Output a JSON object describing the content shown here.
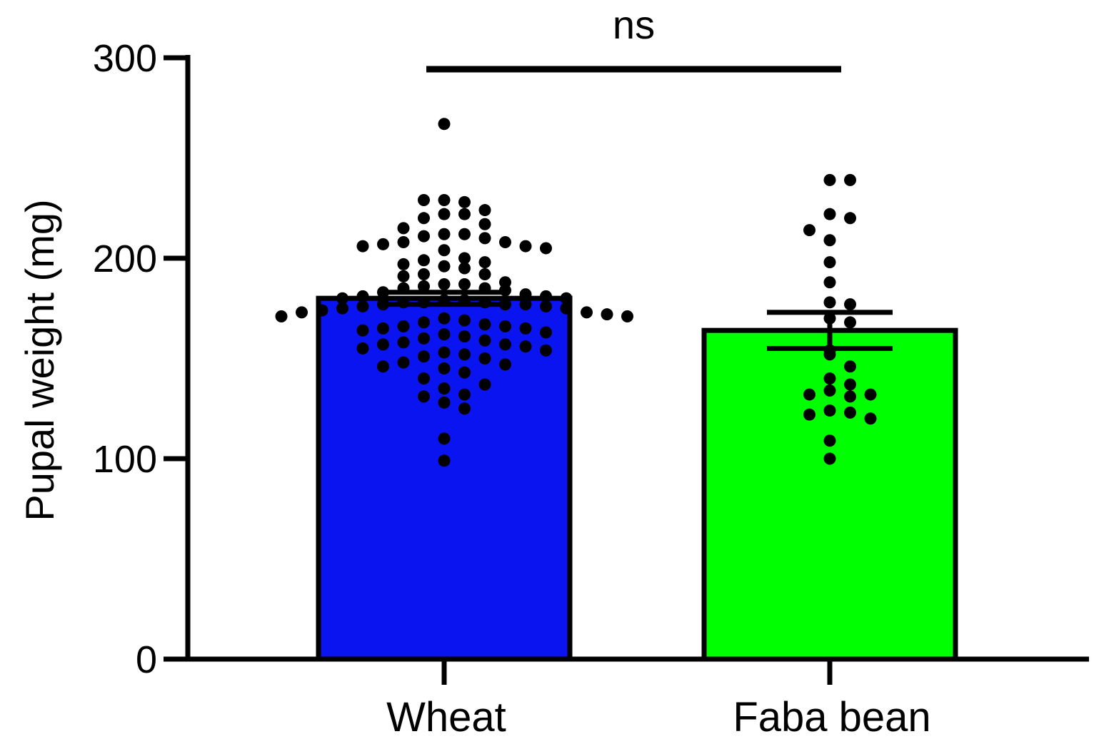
{
  "chart_data": {
    "type": "bar",
    "title": "",
    "xlabel": "",
    "ylabel": "Pupal weight (mg)",
    "ylim": [
      0,
      300
    ],
    "yticks": [
      0,
      100,
      200,
      300
    ],
    "grid": false,
    "categories": [
      "Wheat",
      "Faba bean"
    ],
    "series": [
      {
        "name": "Pupal weight",
        "values": [
          180,
          164
        ],
        "error": [
          3,
          9
        ],
        "colors": [
          "#0a14f0",
          "#00ff00"
        ],
        "points": [
          [
            267,
            229,
            228,
            229,
            224,
            222,
            222,
            220,
            217,
            215,
            212,
            212,
            211,
            210,
            208,
            208,
            207,
            206,
            206,
            205,
            204,
            200,
            199,
            198,
            197,
            196,
            195,
            192,
            192,
            191,
            188,
            187,
            187,
            186,
            185,
            185,
            184,
            183,
            182,
            181,
            181,
            180,
            180,
            179,
            179,
            178,
            178,
            178,
            177,
            177,
            177,
            176,
            176,
            175,
            175,
            174,
            173,
            173,
            172,
            171,
            171,
            170,
            169,
            168,
            167,
            166,
            166,
            165,
            165,
            164,
            163,
            162,
            161,
            160,
            159,
            158,
            157,
            157,
            156,
            155,
            154,
            153,
            152,
            151,
            150,
            148,
            147,
            146,
            145,
            143,
            140,
            137,
            135,
            132,
            131,
            128,
            125,
            110,
            99
          ],
          [
            239,
            239,
            222,
            220,
            214,
            209,
            198,
            188,
            178,
            177,
            170,
            168,
            154,
            152,
            146,
            140,
            137,
            134,
            131,
            132,
            132,
            124,
            123,
            122,
            120,
            109,
            100
          ]
        ]
      }
    ],
    "annotations": [
      {
        "text": "ns",
        "between": [
          "Wheat",
          "Faba bean"
        ],
        "y": 295
      }
    ]
  }
}
